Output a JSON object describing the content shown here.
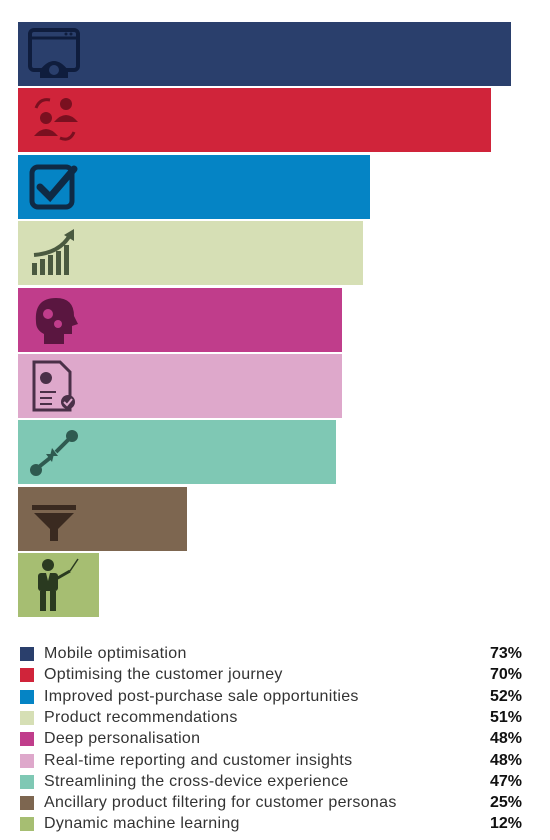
{
  "chart_data": {
    "type": "bar",
    "orientation": "horizontal",
    "categories": [
      "Mobile optimisation",
      "Optimising the customer journey",
      "Improved post-purchase sale opportunities",
      "Product recommendations",
      "Deep personalisation",
      "Real-time reporting and customer insights",
      "Streamlining the cross-device experience",
      "Ancillary product filtering for customer personas",
      "Dynamic machine learning"
    ],
    "values": [
      73,
      70,
      52,
      51,
      48,
      48,
      47,
      25,
      12
    ],
    "value_labels": [
      "73%",
      "70%",
      "52%",
      "51%",
      "48%",
      "48%",
      "47%",
      "25%",
      "12%"
    ],
    "colors": [
      "#2a3f6c",
      "#d0243a",
      "#0584c5",
      "#d6dfb5",
      "#c03d8b",
      "#dea8cb",
      "#7fc8b4",
      "#7d6650",
      "#a6be72"
    ],
    "icons": [
      "browser-gear-icon",
      "users-exchange-icon",
      "checkbox-icon",
      "growth-chart-icon",
      "brain-gears-icon",
      "report-check-icon",
      "connect-arrows-icon",
      "funnel-icon",
      "presenter-icon"
    ],
    "title": "",
    "xlabel": "",
    "ylabel": "",
    "xlim": [
      0,
      75
    ],
    "grid": false,
    "legend": "bottom"
  }
}
